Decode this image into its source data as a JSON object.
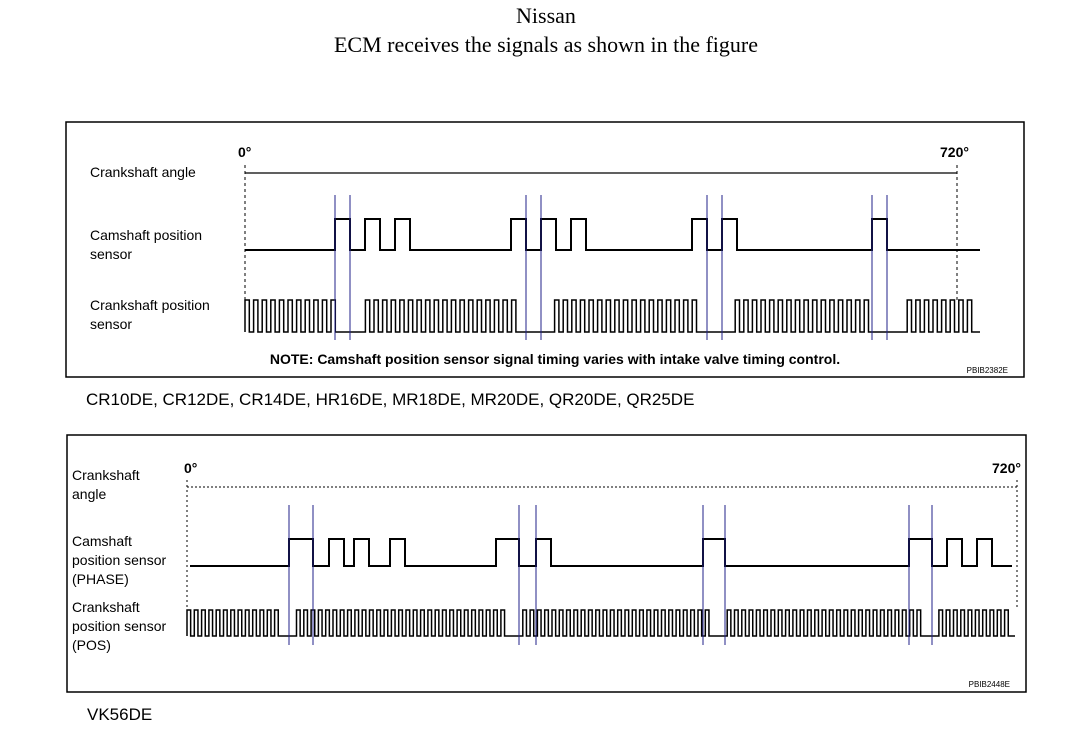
{
  "header": {
    "title": "Nissan",
    "subtitle": "ECM receives the signals as shown in the figure"
  },
  "diagrams": [
    {
      "angle_label": [
        "Crankshaft angle"
      ],
      "cam_label": [
        "Camshaft position",
        "sensor"
      ],
      "crank_label": [
        "Crankshaft position",
        "sensor"
      ],
      "start": "0°",
      "end": "720°",
      "note": "NOTE: Camshaft position sensor signal timing varies with intake valve timing control.",
      "code": "PBIB2382E",
      "caption": "CR10DE, CR12DE, CR14DE, HR16DE, MR18DE, MR20DE, QR20DE, QR25DE"
    },
    {
      "angle_label": [
        "Crankshaft",
        "angle"
      ],
      "cam_label": [
        "Camshaft",
        "position sensor",
        "(PHASE)"
      ],
      "crank_label": [
        "Crankshaft",
        "position sensor",
        "(POS)"
      ],
      "start": "0°",
      "end": "720°",
      "code": "PBIB2448E",
      "caption": "VK56DE"
    }
  ]
}
